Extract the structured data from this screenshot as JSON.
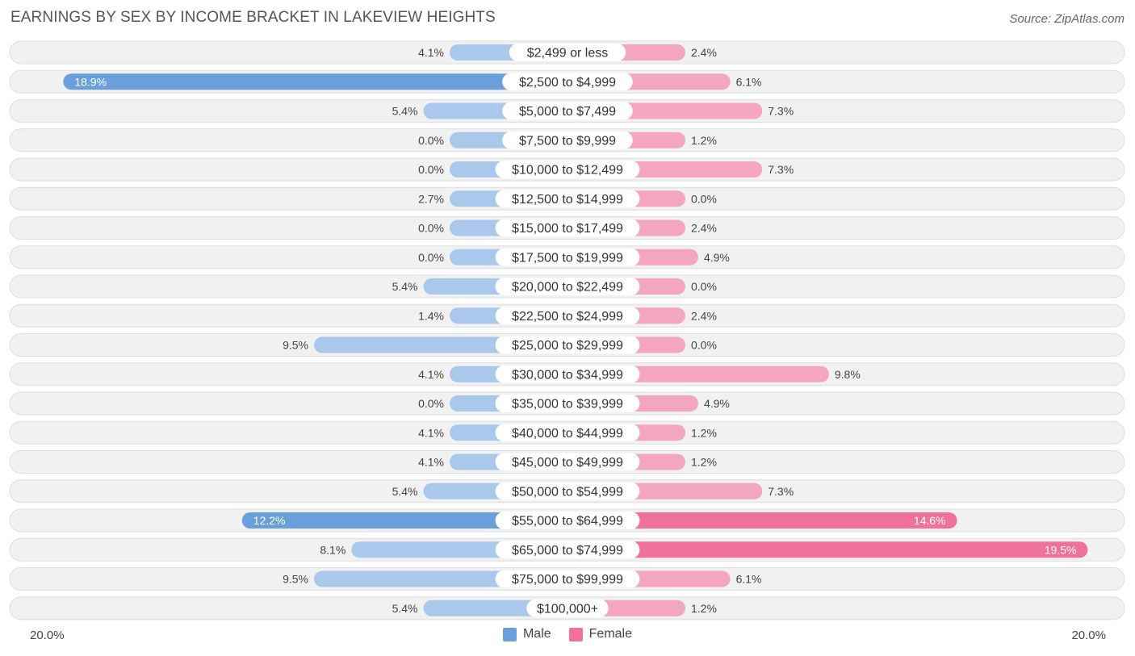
{
  "title": "EARNINGS BY SEX BY INCOME BRACKET IN LAKEVIEW HEIGHTS",
  "source": "Source: ZipAtlas.com",
  "axis": {
    "left_label": "20.0%",
    "right_label": "20.0%"
  },
  "legend": {
    "male_label": "Male",
    "female_label": "Female"
  },
  "colors": {
    "male": "#6a9fdc",
    "male_light": "#a9c8ec",
    "female": "#f0729a",
    "female_light": "#f5a6bf",
    "row_bg": "#f1f1f1",
    "row_border": "#dedede"
  },
  "chart_data": {
    "type": "bar",
    "orientation": "horizontal-diverging",
    "title": "EARNINGS BY SEX BY INCOME BRACKET IN LAKEVIEW HEIGHTS",
    "xlim": [
      -20,
      20
    ],
    "categories": [
      "$2,499 or less",
      "$2,500 to $4,999",
      "$5,000 to $7,499",
      "$7,500 to $9,999",
      "$10,000 to $12,499",
      "$12,500 to $14,999",
      "$15,000 to $17,499",
      "$17,500 to $19,999",
      "$20,000 to $22,499",
      "$22,500 to $24,999",
      "$25,000 to $29,999",
      "$30,000 to $34,999",
      "$35,000 to $39,999",
      "$40,000 to $44,999",
      "$45,000 to $49,999",
      "$50,000 to $54,999",
      "$55,000 to $64,999",
      "$65,000 to $74,999",
      "$75,000 to $99,999",
      "$100,000+"
    ],
    "series": [
      {
        "name": "Male",
        "values": [
          4.1,
          18.9,
          5.4,
          0.0,
          0.0,
          2.7,
          0.0,
          0.0,
          5.4,
          1.4,
          9.5,
          4.1,
          0.0,
          4.1,
          4.1,
          5.4,
          12.2,
          8.1,
          9.5,
          5.4
        ]
      },
      {
        "name": "Female",
        "values": [
          2.4,
          6.1,
          7.3,
          1.2,
          7.3,
          0.0,
          2.4,
          4.9,
          0.0,
          2.4,
          0.0,
          9.8,
          4.9,
          1.2,
          1.2,
          7.3,
          14.6,
          19.5,
          6.1,
          1.2
        ]
      }
    ]
  }
}
